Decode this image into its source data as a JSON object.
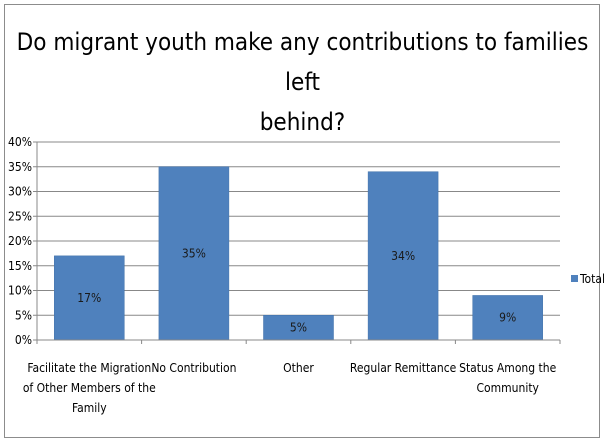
{
  "chart_data": {
    "type": "bar",
    "title": "Do migrant youth make any contributions to families left behind?",
    "title_lines": [
      "Do migrant youth make any contributions to families left",
      "behind?"
    ],
    "categories": [
      "Facilitate the Migration of Other Members of the Family",
      "No Contribution",
      "Other",
      "Regular Remittance",
      "Status  Among the Community"
    ],
    "category_lines": [
      [
        "Facilitate the Migration",
        "of Other Members of the",
        "Family"
      ],
      [
        "No Contribution"
      ],
      [
        "Other"
      ],
      [
        "Regular Remittance"
      ],
      [
        "Status  Among the",
        "Community"
      ]
    ],
    "series": [
      {
        "name": "Total",
        "values": [
          0.17,
          0.35,
          0.05,
          0.34,
          0.09
        ],
        "color": "#4f81bd"
      }
    ],
    "data_labels": [
      "17%",
      "35%",
      "5%",
      "34%",
      "9%"
    ],
    "y_ticks": [
      "0%",
      "5%",
      "10%",
      "15%",
      "20%",
      "25%",
      "30%",
      "35%",
      "40%"
    ],
    "ylim": [
      0,
      0.4
    ],
    "grid": true,
    "legend_position": "right",
    "xlabel": "",
    "ylabel": ""
  }
}
